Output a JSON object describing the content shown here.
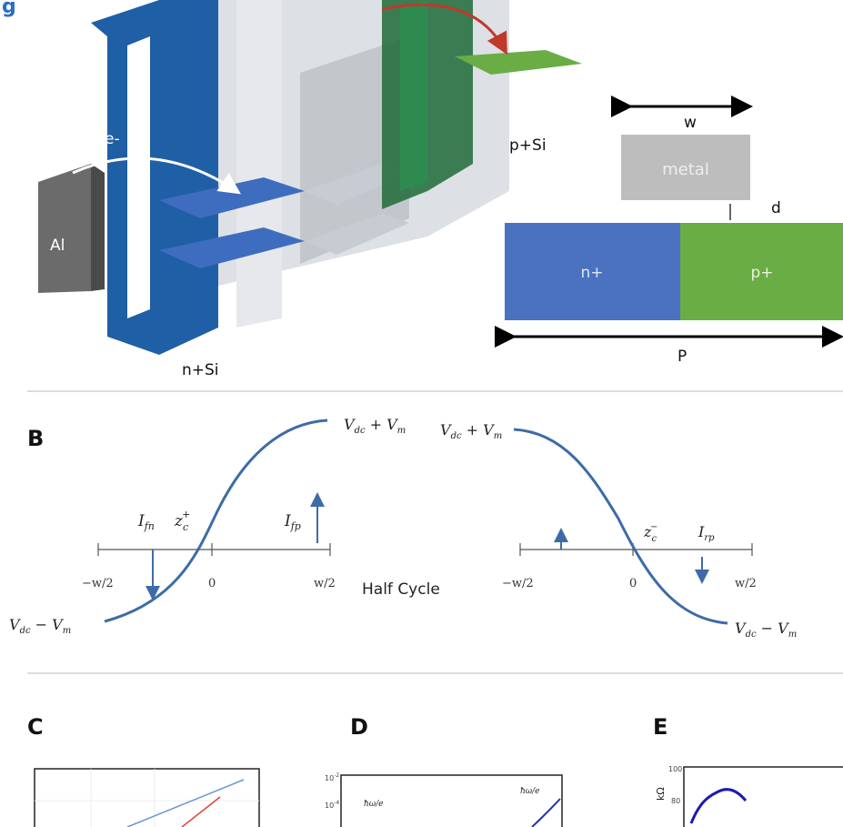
{
  "title_fragment": "g",
  "panel_a": {
    "electron": "e-",
    "al": "Al",
    "n_si": "n+Si",
    "p_si": "p+Si",
    "w": "w",
    "metal": "metal",
    "d": "d",
    "n_plus": "n+",
    "p_plus": "p+",
    "period": "P"
  },
  "panel_b": {
    "label": "B",
    "left": {
      "top": [
        "V",
        "dc",
        " + V",
        "m"
      ],
      "bottom": [
        "V",
        "dc",
        " − V",
        "m"
      ],
      "i_fn": [
        "I",
        "fn"
      ],
      "zc": [
        "z",
        "c",
        "+"
      ],
      "i_fp": [
        "I",
        "fp"
      ],
      "ticks": [
        "−w/2",
        "0",
        "w/2"
      ]
    },
    "middle": "Half Cycle",
    "right": {
      "top": [
        "V",
        "dc",
        " + V",
        "m"
      ],
      "bottom": [
        "V",
        "dc",
        " − V",
        "m"
      ],
      "zc": [
        "z",
        "c",
        "−"
      ],
      "i_rp": [
        "I",
        "rp"
      ],
      "ticks": [
        "−w/2",
        "0",
        "w/2"
      ]
    }
  },
  "panel_c": {
    "label": "C"
  },
  "panel_d": {
    "label": "D",
    "yticks": [
      "10",
      "10"
    ],
    "ytick_exp": [
      "-2",
      "-4"
    ],
    "annotations": [
      "ħω/e",
      "ħω/e"
    ]
  },
  "panel_e": {
    "label": "E",
    "yticks": [
      "100",
      "80"
    ],
    "ylabel": "kΩ"
  }
}
